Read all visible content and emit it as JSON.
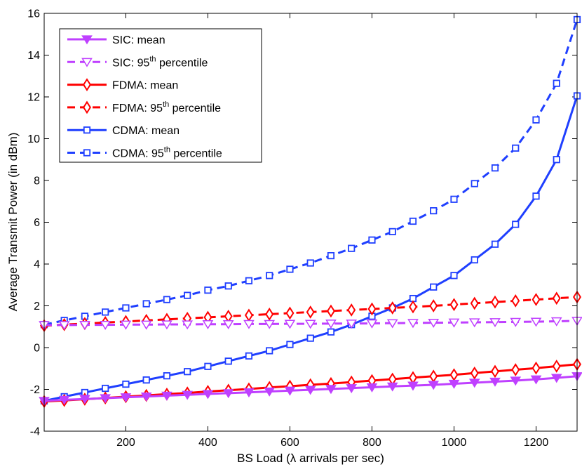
{
  "chart_data": {
    "type": "line",
    "title": "",
    "xlabel": "BS Load (λ arrivals per sec)",
    "ylabel": "Average Transmit Power (in dBm)",
    "xlim": [
      1,
      1300
    ],
    "ylim": [
      -4,
      16
    ],
    "xticks": [
      200,
      400,
      600,
      800,
      1000,
      1200
    ],
    "yticks": [
      -4,
      -2,
      0,
      2,
      4,
      6,
      8,
      10,
      12,
      14,
      16
    ],
    "grid": false,
    "legend_position": "top-left",
    "x": [
      1,
      50,
      100,
      150,
      200,
      250,
      300,
      350,
      400,
      450,
      500,
      550,
      600,
      650,
      700,
      750,
      800,
      850,
      900,
      950,
      1000,
      1050,
      1100,
      1150,
      1200,
      1250,
      1300
    ],
    "series": [
      {
        "name": "SIC: mean",
        "legend_label": "SIC: mean",
        "legend_sup": "",
        "legend_suffix": "",
        "color": "#bf40ff",
        "line_style": "solid",
        "marker": "triangle-down",
        "values": [
          -2.55,
          -2.5,
          -2.46,
          -2.42,
          -2.38,
          -2.34,
          -2.3,
          -2.26,
          -2.22,
          -2.18,
          -2.14,
          -2.1,
          -2.06,
          -2.02,
          -1.98,
          -1.94,
          -1.9,
          -1.86,
          -1.82,
          -1.78,
          -1.73,
          -1.68,
          -1.63,
          -1.58,
          -1.52,
          -1.45,
          -1.37
        ]
      },
      {
        "name": "SIC: 95th percentile",
        "legend_label": "SIC: 95",
        "legend_sup": "th",
        "legend_suffix": " percentile",
        "color": "#bf40ff",
        "line_style": "dashed",
        "marker": "triangle-down-open",
        "values": [
          1.08,
          1.08,
          1.09,
          1.09,
          1.1,
          1.1,
          1.11,
          1.11,
          1.12,
          1.12,
          1.13,
          1.13,
          1.14,
          1.14,
          1.15,
          1.15,
          1.16,
          1.17,
          1.18,
          1.19,
          1.2,
          1.21,
          1.22,
          1.23,
          1.24,
          1.26,
          1.28
        ]
      },
      {
        "name": "FDMA: mean",
        "legend_label": "FDMA: mean",
        "legend_sup": "",
        "legend_suffix": "",
        "color": "#ff0000",
        "line_style": "solid",
        "marker": "diamond",
        "values": [
          -2.58,
          -2.53,
          -2.47,
          -2.41,
          -2.35,
          -2.29,
          -2.23,
          -2.17,
          -2.1,
          -2.04,
          -1.98,
          -1.91,
          -1.85,
          -1.78,
          -1.72,
          -1.65,
          -1.58,
          -1.51,
          -1.44,
          -1.37,
          -1.3,
          -1.22,
          -1.14,
          -1.06,
          -0.98,
          -0.89,
          -0.8
        ]
      },
      {
        "name": "FDMA: 95th percentile",
        "legend_label": "FDMA: 95",
        "legend_sup": "th",
        "legend_suffix": " percentile",
        "color": "#ff0000",
        "line_style": "dashed",
        "marker": "diamond-open",
        "values": [
          1.05,
          1.1,
          1.15,
          1.2,
          1.25,
          1.3,
          1.35,
          1.4,
          1.45,
          1.5,
          1.55,
          1.6,
          1.65,
          1.7,
          1.75,
          1.8,
          1.85,
          1.9,
          1.95,
          2.0,
          2.06,
          2.12,
          2.18,
          2.24,
          2.3,
          2.36,
          2.42
        ]
      },
      {
        "name": "CDMA: mean",
        "legend_label": "CDMA: mean",
        "legend_sup": "",
        "legend_suffix": "",
        "color": "#1f3fff",
        "line_style": "solid",
        "marker": "square",
        "values": [
          -2.55,
          -2.35,
          -2.15,
          -1.95,
          -1.75,
          -1.55,
          -1.35,
          -1.15,
          -0.9,
          -0.65,
          -0.4,
          -0.15,
          0.15,
          0.45,
          0.75,
          1.1,
          1.5,
          1.9,
          2.35,
          2.9,
          3.45,
          4.2,
          4.95,
          5.9,
          7.25,
          9.0,
          12.05
        ]
      },
      {
        "name": "CDMA: 95th percentile",
        "legend_label": "CDMA: 95",
        "legend_sup": "th",
        "legend_suffix": " percentile",
        "color": "#1f3fff",
        "line_style": "dashed",
        "marker": "square-open",
        "values": [
          1.1,
          1.3,
          1.5,
          1.7,
          1.9,
          2.1,
          2.3,
          2.5,
          2.75,
          2.95,
          3.2,
          3.45,
          3.75,
          4.05,
          4.4,
          4.75,
          5.15,
          5.55,
          6.05,
          6.55,
          7.1,
          7.85,
          8.6,
          9.55,
          10.9,
          12.65,
          15.7
        ]
      }
    ]
  }
}
